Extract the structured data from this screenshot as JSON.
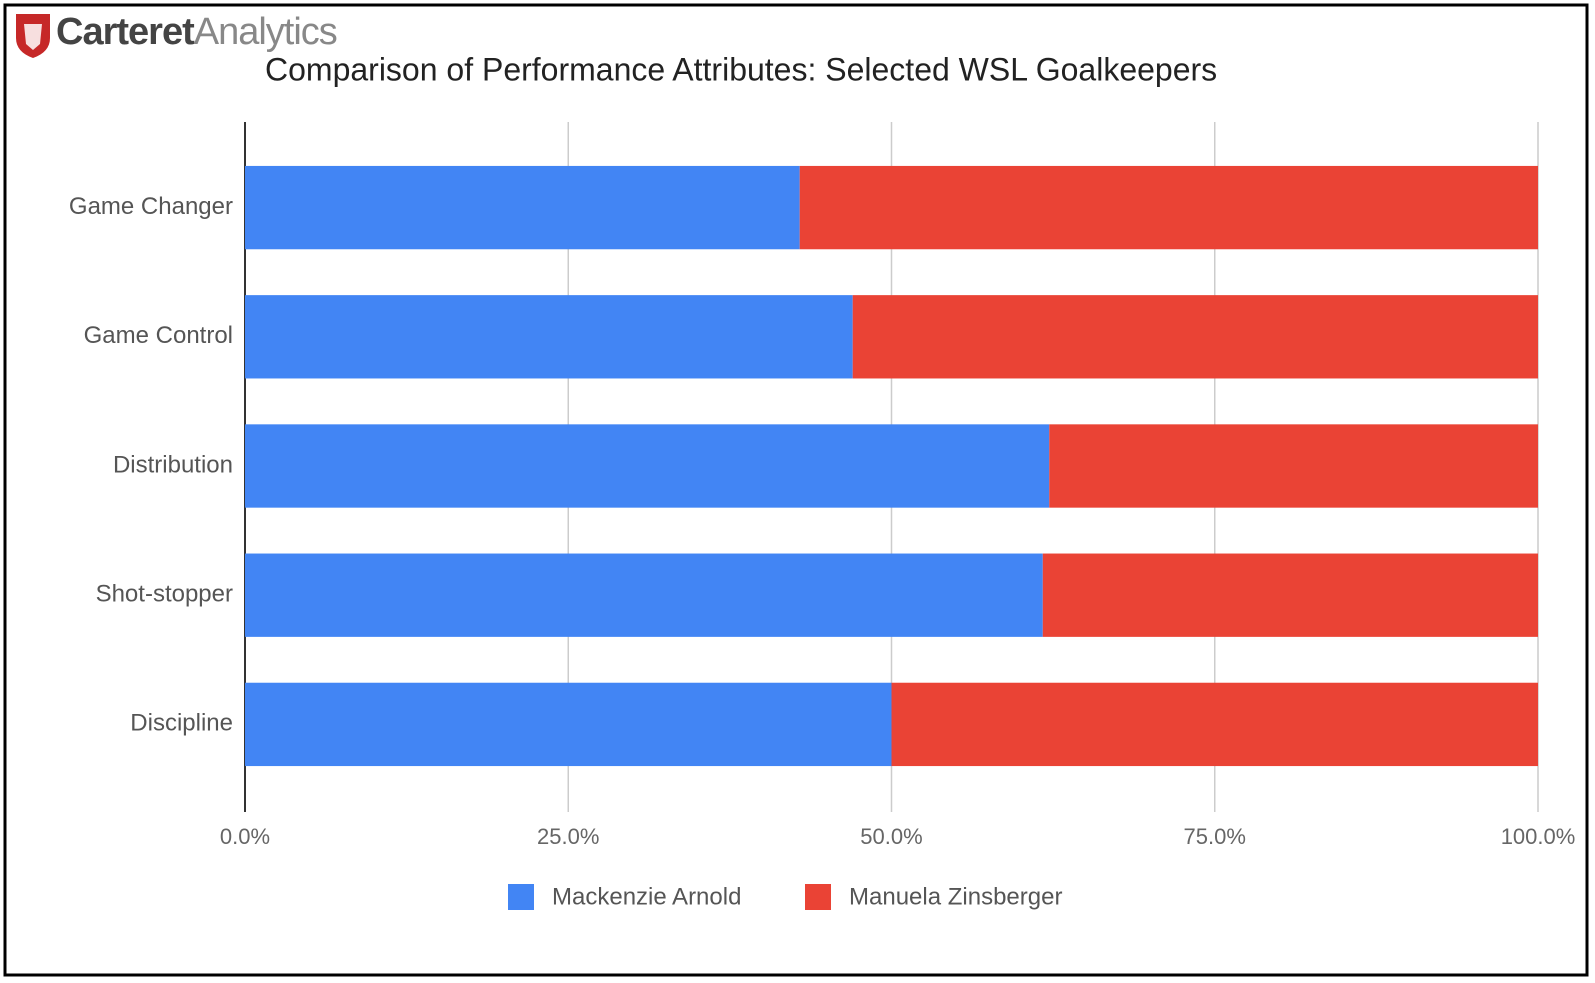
{
  "logo": {
    "bold": "Carteret",
    "light": "Analytics"
  },
  "chart_data": {
    "type": "stacked-bar-horizontal",
    "title": "Comparison of Performance Attributes: Selected WSL Goalkeepers",
    "categories": [
      "Game Changer",
      "Game Control",
      "Distribution",
      "Shot-stopper",
      "Discipline"
    ],
    "series": [
      {
        "name": "Mackenzie Arnold",
        "color": "#4285f4",
        "values": [
          42.9,
          47.0,
          62.2,
          61.7,
          50.0
        ]
      },
      {
        "name": "Manuela Zinsberger",
        "color": "#ea4335",
        "values": [
          57.1,
          53.0,
          37.8,
          38.3,
          50.0
        ]
      }
    ],
    "xlim": [
      0,
      100
    ],
    "xticks": [
      {
        "value": 0,
        "label": "0.0%"
      },
      {
        "value": 25,
        "label": "25.0%"
      },
      {
        "value": 50,
        "label": "50.0%"
      },
      {
        "value": 75,
        "label": "75.0%"
      },
      {
        "value": 100,
        "label": "100.0%"
      }
    ],
    "grid": true
  }
}
